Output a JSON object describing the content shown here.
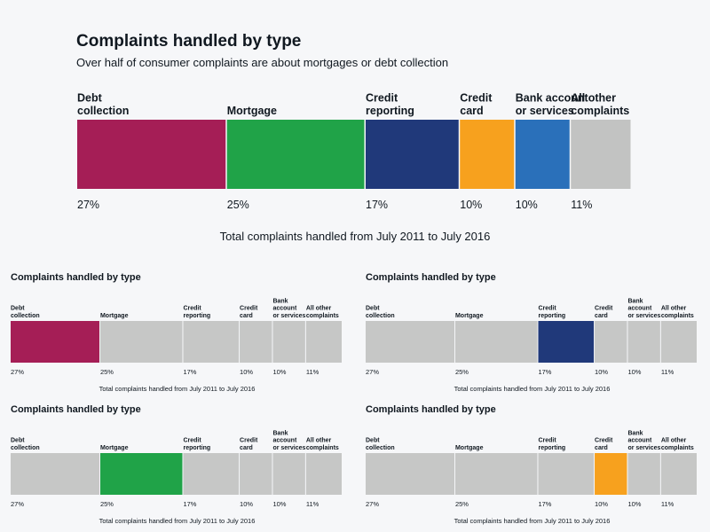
{
  "main": {
    "title": "Complaints handled by type",
    "subtitle": "Over half of consumer complaints are about mortgages or debt collection",
    "caption": "Total complaints handled from July 2011 to July 2016"
  },
  "small_multiples": [
    {
      "title": "Complaints handled by type",
      "highlight": 0,
      "caption": "Total complaints handled from July 2011 to July 2016"
    },
    {
      "title": "Complaints handled by type",
      "highlight": 2,
      "caption": "Total complaints handled from July 2011 to July 2016"
    },
    {
      "title": "Complaints handled by type",
      "highlight": 1,
      "caption": "Total complaints handled from July 2011 to July 2016"
    },
    {
      "title": "Complaints handled by type",
      "highlight": 3,
      "caption": "Total complaints handled from July 2011 to July 2016"
    }
  ],
  "chart_data": {
    "type": "bar",
    "subtype": "stacked-100-percent",
    "title": "Complaints handled by type",
    "subtitle": "Over half of consumer complaints are about mortgages or debt collection",
    "xlabel": "Total complaints handled from July 2011 to July 2016",
    "categories": [
      [
        "Debt",
        "collection"
      ],
      [
        "Mortgage"
      ],
      [
        "Credit",
        "reporting"
      ],
      [
        "Credit",
        "card"
      ],
      [
        "Bank",
        "account",
        "or services"
      ],
      [
        "All other",
        "complaints"
      ]
    ],
    "main_categories": [
      [
        "Debt",
        "collection"
      ],
      [
        "Mortgage"
      ],
      [
        "Credit",
        "reporting"
      ],
      [
        "Credit",
        "card"
      ],
      [
        "Bank account",
        "or services"
      ],
      [
        "All other",
        "complaints"
      ]
    ],
    "values": [
      27,
      25,
      17,
      10,
      10,
      11
    ],
    "value_labels": [
      "27%",
      "25%",
      "17%",
      "10%",
      "10%",
      "11%"
    ],
    "colors": [
      "#a51e56",
      "#20a348",
      "#20397a",
      "#f7a11e",
      "#2a70ba",
      "#c2c3c2"
    ],
    "neutral_color": "#c6c7c6"
  }
}
